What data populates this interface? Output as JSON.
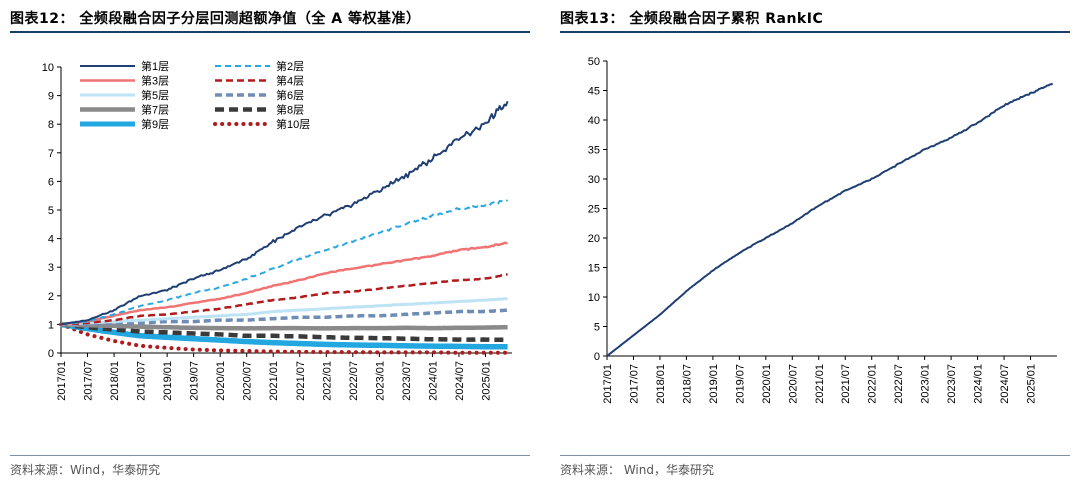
{
  "left_panel": {
    "title": "图表12：  全频段融合因子分层回测超额净值（全 A 等权基准）",
    "source": "资料来源：Wind，华泰研究"
  },
  "right_panel": {
    "title": "图表13：  全频段融合因子累积 RankIC",
    "source": "资料来源：  Wind，华泰研究"
  },
  "colors": {
    "layer1": "#1f3f73",
    "layer2": "#29a8e0",
    "layer3": "#f07474",
    "layer4": "#b01c1c",
    "layer5": "#bde3f4",
    "layer6": "#6f8cb4",
    "layer7": "#8a8a8a",
    "layer8": "#3a3a3a",
    "layer9": "#22a7e0",
    "layer10": "#b01c1c",
    "rankic": "#1f3f73",
    "rule": "#1a3f6b"
  },
  "chart_data": [
    {
      "type": "line",
      "title": "",
      "xlabel": "",
      "ylabel": "",
      "x_ticks": [
        "2017/01",
        "2017/07",
        "2018/01",
        "2018/07",
        "2019/01",
        "2019/07",
        "2020/01",
        "2020/07",
        "2021/01",
        "2021/07",
        "2022/01",
        "2022/07",
        "2023/01",
        "2023/07",
        "2024/01",
        "2024/07",
        "2025/01"
      ],
      "y_ticks": [
        0,
        1,
        2,
        3,
        4,
        5,
        6,
        7,
        8,
        9,
        10
      ],
      "ylim": [
        0,
        10
      ],
      "x": [
        "2017/01",
        "2017/07",
        "2018/01",
        "2018/07",
        "2019/01",
        "2019/07",
        "2020/01",
        "2020/07",
        "2021/01",
        "2021/07",
        "2022/01",
        "2022/07",
        "2023/01",
        "2023/07",
        "2024/01",
        "2024/07",
        "2025/01",
        "2025/06"
      ],
      "legend": "top-left, 2 columns",
      "series": [
        {
          "name": "第1层",
          "style": "solid",
          "values": [
            1.0,
            1.15,
            1.5,
            2.0,
            2.2,
            2.6,
            2.9,
            3.3,
            3.9,
            4.4,
            4.8,
            5.2,
            5.7,
            6.2,
            6.8,
            7.5,
            8.0,
            8.8
          ]
        },
        {
          "name": "第2层",
          "style": "dash",
          "values": [
            1.0,
            1.1,
            1.35,
            1.65,
            1.85,
            2.1,
            2.3,
            2.6,
            2.95,
            3.3,
            3.6,
            3.9,
            4.2,
            4.5,
            4.8,
            5.05,
            5.15,
            5.35
          ]
        },
        {
          "name": "第3层",
          "style": "solid",
          "values": [
            1.0,
            1.1,
            1.3,
            1.5,
            1.6,
            1.75,
            1.9,
            2.1,
            2.35,
            2.55,
            2.8,
            2.95,
            3.1,
            3.25,
            3.4,
            3.6,
            3.7,
            3.85
          ]
        },
        {
          "name": "第4层",
          "style": "dash",
          "values": [
            1.0,
            1.05,
            1.15,
            1.3,
            1.35,
            1.45,
            1.55,
            1.7,
            1.85,
            1.95,
            2.1,
            2.15,
            2.25,
            2.35,
            2.45,
            2.55,
            2.6,
            2.75
          ]
        },
        {
          "name": "第5层",
          "style": "solid",
          "values": [
            1.0,
            1.05,
            1.1,
            1.15,
            1.2,
            1.25,
            1.3,
            1.35,
            1.45,
            1.5,
            1.55,
            1.6,
            1.65,
            1.7,
            1.75,
            1.8,
            1.85,
            1.9
          ]
        },
        {
          "name": "第6层",
          "style": "dash",
          "values": [
            1.0,
            1.0,
            1.05,
            1.05,
            1.1,
            1.1,
            1.15,
            1.15,
            1.2,
            1.25,
            1.25,
            1.3,
            1.3,
            1.35,
            1.4,
            1.45,
            1.45,
            1.5
          ]
        },
        {
          "name": "第7层",
          "style": "solid",
          "values": [
            1.0,
            0.97,
            0.95,
            0.92,
            0.9,
            0.88,
            0.87,
            0.86,
            0.87,
            0.87,
            0.86,
            0.87,
            0.87,
            0.88,
            0.87,
            0.88,
            0.89,
            0.9
          ]
        },
        {
          "name": "第8层",
          "style": "dash",
          "values": [
            1.0,
            0.9,
            0.82,
            0.75,
            0.72,
            0.68,
            0.65,
            0.6,
            0.6,
            0.58,
            0.55,
            0.53,
            0.52,
            0.5,
            0.48,
            0.47,
            0.47,
            0.46
          ]
        },
        {
          "name": "第9层",
          "style": "solid",
          "values": [
            1.0,
            0.85,
            0.72,
            0.6,
            0.55,
            0.5,
            0.45,
            0.4,
            0.36,
            0.33,
            0.3,
            0.28,
            0.27,
            0.25,
            0.24,
            0.23,
            0.22,
            0.22
          ]
        },
        {
          "name": "第10层",
          "style": "dot",
          "values": [
            1.0,
            0.65,
            0.42,
            0.25,
            0.18,
            0.12,
            0.09,
            0.07,
            0.05,
            0.04,
            0.03,
            0.03,
            0.02,
            0.02,
            0.02,
            0.01,
            0.01,
            0.01
          ]
        }
      ]
    },
    {
      "type": "line",
      "title": "",
      "xlabel": "",
      "ylabel": "",
      "x_ticks": [
        "2017/01",
        "2017/07",
        "2018/01",
        "2018/07",
        "2019/01",
        "2019/07",
        "2020/01",
        "2020/07",
        "2021/01",
        "2021/07",
        "2022/01",
        "2022/07",
        "2023/01",
        "2023/07",
        "2024/01",
        "2024/07",
        "2025/01"
      ],
      "y_ticks": [
        0,
        5,
        10,
        15,
        20,
        25,
        30,
        35,
        40,
        45,
        50
      ],
      "ylim": [
        0,
        50
      ],
      "x": [
        "2017/01",
        "2017/07",
        "2018/01",
        "2018/07",
        "2019/01",
        "2019/07",
        "2020/01",
        "2020/07",
        "2021/01",
        "2021/07",
        "2022/01",
        "2022/07",
        "2023/01",
        "2023/07",
        "2024/01",
        "2024/07",
        "2025/01",
        "2025/06"
      ],
      "series": [
        {
          "name": "",
          "values": [
            0,
            3.5,
            7.0,
            11.0,
            14.5,
            17.5,
            20.0,
            22.5,
            25.5,
            28.0,
            30.0,
            32.5,
            35.0,
            37.0,
            39.5,
            42.5,
            44.5,
            46.2
          ]
        }
      ]
    }
  ]
}
